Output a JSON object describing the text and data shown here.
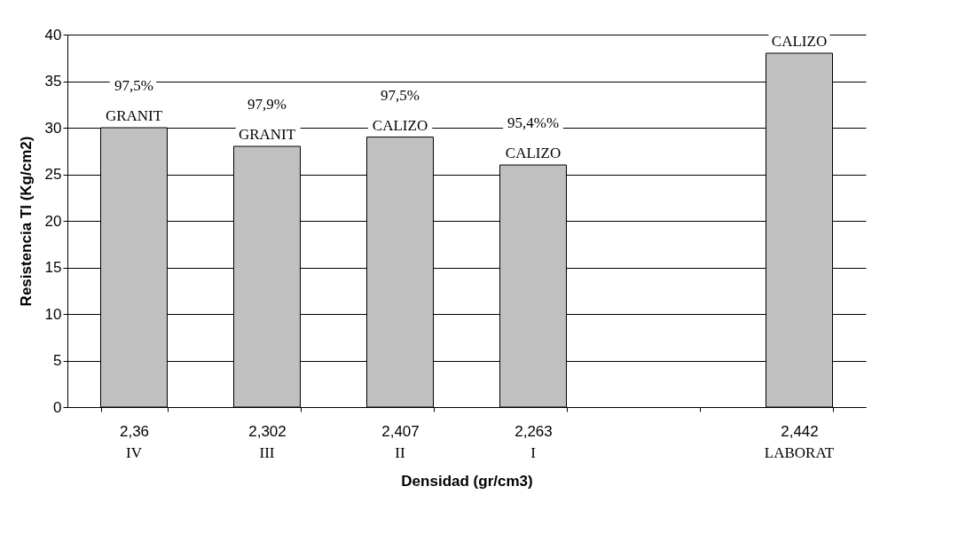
{
  "chart_data": {
    "type": "bar",
    "xlabel": "Densidad (gr/cm3)",
    "ylabel": "Resistencia TI (Kg/cm2)",
    "categories": [
      "2,36",
      "2,302",
      "2,407",
      "2,263",
      null,
      "2,442"
    ],
    "values": [
      30,
      28,
      29,
      26,
      null,
      38
    ],
    "color": "#c0c0c0",
    "ylim": [
      0,
      40
    ],
    "yticks": [
      0,
      5,
      10,
      15,
      20,
      25,
      30,
      35,
      40
    ],
    "grid": "y",
    "annotations": [
      {
        "text": "97,5%",
        "x": "2,36",
        "y": 30
      },
      {
        "text": "GRANIT",
        "x": "2,36",
        "y": 30
      },
      {
        "text": "97,9%",
        "x": "2,302",
        "y": 28
      },
      {
        "text": "GRANIT",
        "x": "2,302",
        "y": 28
      },
      {
        "text": "97,5%",
        "x": "2,407",
        "y": 29
      },
      {
        "text": "CALIZO",
        "x": "2,407",
        "y": 29
      },
      {
        "text": "95,4%%",
        "x": "2,263",
        "y": 26
      },
      {
        "text": "CALIZO",
        "x": "2,263",
        "y": 26
      },
      {
        "text": "CALIZO",
        "x": "2,442",
        "y": 38
      },
      "IV",
      "III",
      "II",
      "I",
      "LABORAT"
    ]
  }
}
